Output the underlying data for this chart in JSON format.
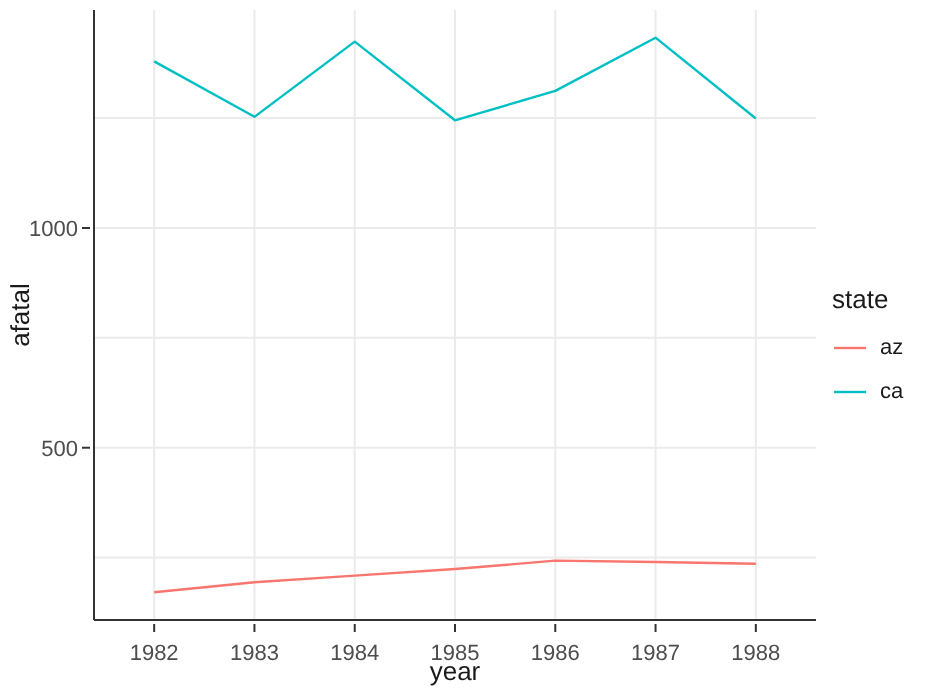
{
  "chart_data": {
    "type": "line",
    "xlabel": "year",
    "ylabel": "afatal",
    "legend_title": "state",
    "x": [
      1982,
      1983,
      1984,
      1985,
      1986,
      1987,
      1988
    ],
    "series": [
      {
        "name": "az",
        "color": "#f8766d",
        "values": [
          171,
          194,
          209,
          224,
          243,
          240,
          236
        ]
      },
      {
        "name": "ca",
        "color": "#00bfc4",
        "values": [
          1379,
          1253,
          1424,
          1245,
          1312,
          1433,
          1249
        ]
      }
    ],
    "xlim": [
      1981.4,
      1988.6
    ],
    "xticks": [
      1982,
      1983,
      1984,
      1985,
      1986,
      1987,
      1988
    ],
    "ylim": [
      108,
      1496
    ],
    "yticks": [
      {
        "value": 250,
        "label": null
      },
      500,
      {
        "value": 750,
        "label": null
      },
      1000,
      {
        "value": 1250,
        "label": null
      }
    ],
    "grid": true,
    "legend": "right",
    "marker": "none",
    "line_style": "solid"
  }
}
